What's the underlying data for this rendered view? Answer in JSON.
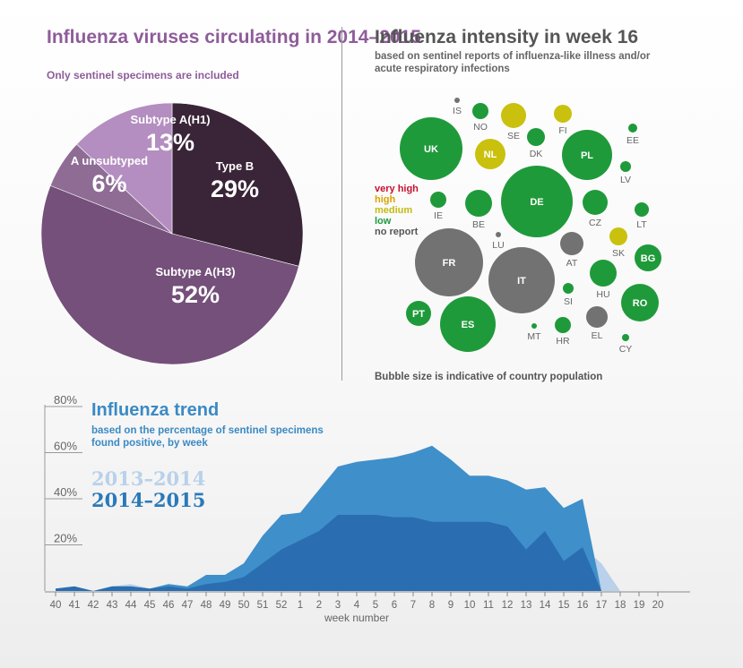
{
  "pie": {
    "title": "Influenza viruses circulating in 2014–2015",
    "subtitle": "Only sentinel specimens are included"
  },
  "map": {
    "title": "Influenza intensity in week 16",
    "subtitle": "based on sentinel reports of influenza-like illness and/or acute respiratory infections",
    "note": "Bubble size is indicative of country population",
    "legend": [
      {
        "label": "very high",
        "color": "#c8102e"
      },
      {
        "label": "high",
        "color": "#d9a400"
      },
      {
        "label": "medium",
        "color": "#c4bb12"
      },
      {
        "label": "low",
        "color": "#1e9a3c"
      },
      {
        "label": "no report",
        "color": "#555555"
      }
    ]
  },
  "trend": {
    "title": "Influenza trend",
    "subtitle": "based on the percentage of sentinel specimens found positive, by week",
    "season_prev": "2013–2014",
    "season_curr": "2014–2015",
    "xlabel": "week number"
  },
  "chart_data": [
    {
      "type": "pie",
      "title": "Influenza viruses circulating in 2014–2015",
      "slices": [
        {
          "label": "Type B",
          "value": 29,
          "display": "29%",
          "color": "#3a2538"
        },
        {
          "label": "Subtype A(H3)",
          "value": 52,
          "display": "52%",
          "color": "#74507a"
        },
        {
          "label": "A unsubtyped",
          "value": 6,
          "display": "6%",
          "color": "#8e6c94"
        },
        {
          "label": "Subtype A(H1)",
          "value": 13,
          "display": "13%",
          "color": "#b48ec0"
        }
      ]
    },
    {
      "type": "scatter",
      "title": "Influenza intensity in week 16",
      "bubbles": [
        {
          "code": "IS",
          "intensity": "no report",
          "size": 1
        },
        {
          "code": "NO",
          "intensity": "low",
          "size": 3
        },
        {
          "code": "SE",
          "intensity": "medium",
          "size": 4
        },
        {
          "code": "FI",
          "intensity": "medium",
          "size": 3
        },
        {
          "code": "UK",
          "intensity": "low",
          "size": 12
        },
        {
          "code": "DK",
          "intensity": "low",
          "size": 3
        },
        {
          "code": "NL",
          "intensity": "medium",
          "size": 5
        },
        {
          "code": "PL",
          "intensity": "low",
          "size": 8
        },
        {
          "code": "EE",
          "intensity": "low",
          "size": 1
        },
        {
          "code": "LV",
          "intensity": "low",
          "size": 2
        },
        {
          "code": "DE",
          "intensity": "low",
          "size": 14
        },
        {
          "code": "IE",
          "intensity": "low",
          "size": 3
        },
        {
          "code": "BE",
          "intensity": "low",
          "size": 4
        },
        {
          "code": "CZ",
          "intensity": "low",
          "size": 4
        },
        {
          "code": "LT",
          "intensity": "low",
          "size": 2
        },
        {
          "code": "LU",
          "intensity": "no report",
          "size": 1
        },
        {
          "code": "AT",
          "intensity": "no report",
          "size": 3
        },
        {
          "code": "SK",
          "intensity": "medium",
          "size": 3
        },
        {
          "code": "BG",
          "intensity": "low",
          "size": 3
        },
        {
          "code": "FR",
          "intensity": "no report",
          "size": 12
        },
        {
          "code": "IT",
          "intensity": "no report",
          "size": 11
        },
        {
          "code": "HU",
          "intensity": "low",
          "size": 3
        },
        {
          "code": "RO",
          "intensity": "low",
          "size": 5
        },
        {
          "code": "SI",
          "intensity": "low",
          "size": 2
        },
        {
          "code": "PT",
          "intensity": "low",
          "size": 3
        },
        {
          "code": "ES",
          "intensity": "low",
          "size": 9
        },
        {
          "code": "MT",
          "intensity": "low",
          "size": 1
        },
        {
          "code": "HR",
          "intensity": "low",
          "size": 2
        },
        {
          "code": "EL",
          "intensity": "no report",
          "size": 3
        },
        {
          "code": "CY",
          "intensity": "low",
          "size": 1
        }
      ]
    },
    {
      "type": "area",
      "title": "Influenza trend",
      "xlabel": "week number",
      "ylabel": "",
      "ylim": [
        0,
        80
      ],
      "yticks": [
        "20%",
        "40%",
        "60%",
        "80%"
      ],
      "categories": [
        "40",
        "41",
        "42",
        "43",
        "44",
        "45",
        "46",
        "47",
        "48",
        "49",
        "50",
        "51",
        "52",
        "1",
        "2",
        "3",
        "4",
        "5",
        "6",
        "7",
        "8",
        "9",
        "10",
        "11",
        "12",
        "13",
        "14",
        "15",
        "16",
        "17",
        "18",
        "19",
        "20"
      ],
      "series": [
        {
          "name": "2013–2014",
          "color": "#b9d1ea",
          "values": [
            1,
            2,
            0,
            2,
            3,
            1,
            2,
            1,
            3,
            4,
            6,
            12,
            18,
            22,
            26,
            33,
            33,
            33,
            32,
            32,
            30,
            30,
            30,
            30,
            28,
            18,
            26,
            13,
            19,
            12,
            0,
            null,
            null
          ]
        },
        {
          "name": "2014–2015",
          "color": "#2a7ab8",
          "values": [
            1,
            2,
            0,
            2,
            2,
            1,
            3,
            2,
            7,
            7,
            12,
            24,
            33,
            34,
            44,
            54,
            56,
            57,
            58,
            60,
            63,
            57,
            50,
            50,
            48,
            44,
            45,
            36,
            40,
            null,
            null,
            null,
            null
          ]
        }
      ]
    }
  ]
}
